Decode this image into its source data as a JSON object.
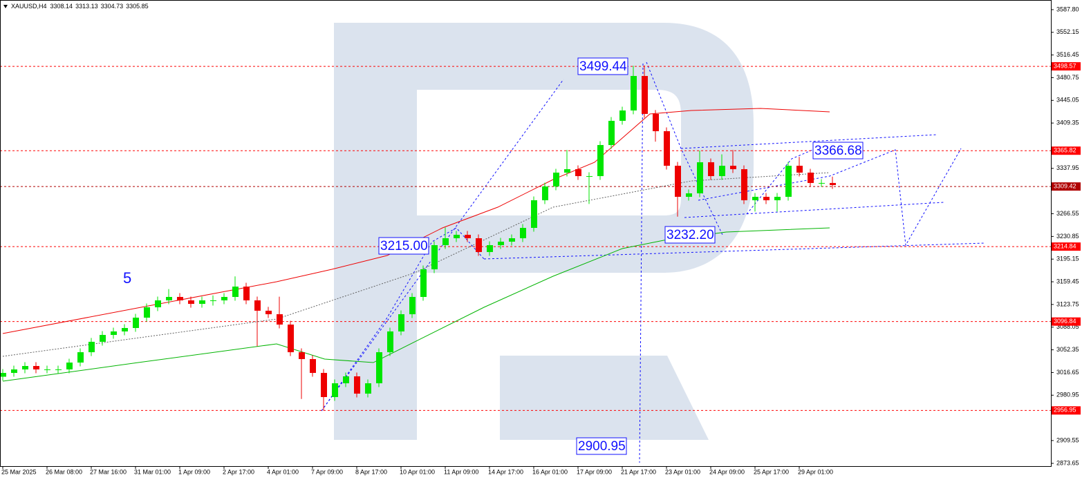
{
  "chart_data": {
    "type": "candlestick",
    "header": {
      "symbol": "XAUUSD,H4",
      "ohlc": [
        3308.14,
        3313.13,
        3304.73,
        3305.85
      ]
    },
    "up_color": "#00e600",
    "down_color": "#ee0000",
    "ylim": [
      2869.3,
      3603.0
    ],
    "yticks": [
      {
        "value": 3587.8,
        "label": "3587.80"
      },
      3552.15,
      3516.45,
      3480.75,
      3445.05,
      3409.35,
      3337.95,
      3266.55,
      3230.85,
      3195.15,
      3159.45,
      3123.75,
      3088.05,
      3052.35,
      3016.65,
      2980.95,
      2909.55,
      2873.65
    ],
    "xlim": [
      -0.25,
      94.75
    ],
    "xticks": [
      {
        "value": 0,
        "label": "25 Mar 2025"
      },
      {
        "value": 4,
        "label": "26 Mar 08:00"
      },
      {
        "value": 8,
        "label": "27 Mar 16:00"
      },
      {
        "value": 12,
        "label": "31 Mar 01:00"
      },
      {
        "value": 16,
        "label": "1 Apr 09:00"
      },
      {
        "value": 20,
        "label": "2 Apr 17:00"
      },
      {
        "value": 24,
        "label": "4 Apr 01:00"
      },
      {
        "value": 28,
        "label": "7 Apr 09:00"
      },
      {
        "value": 32,
        "label": "8 Apr 17:00"
      },
      {
        "value": 36,
        "label": "10 Apr 01:00"
      },
      {
        "value": 40,
        "label": "11 Apr 09:00"
      },
      {
        "value": 44,
        "label": "14 Apr 17:00"
      },
      {
        "value": 48,
        "label": "16 Apr 01:00"
      },
      {
        "value": 52,
        "label": "17 Apr 09:00"
      },
      {
        "value": 56,
        "label": "21 Apr 17:00"
      },
      {
        "value": 60,
        "label": "23 Apr 01:00"
      },
      {
        "value": 64,
        "label": "24 Apr 09:00"
      },
      {
        "value": 68,
        "label": "25 Apr 17:00"
      },
      {
        "value": 72,
        "label": "29 Apr 01:00"
      }
    ],
    "levels": [
      {
        "value": 3498.57,
        "color": "#ff0000"
      },
      {
        "value": 3365.82,
        "color": "#ff0000"
      },
      {
        "value": 3309.42,
        "color": "#b00000"
      },
      {
        "value": 3214.84,
        "color": "#ff0000"
      },
      {
        "value": 3096.84,
        "color": "#ff0000"
      },
      {
        "value": 2956.95,
        "color": "#ff0000"
      }
    ],
    "series": [
      {
        "ohlc": [
          [
            3010.0,
            3022.0,
            3004.0,
            3016.0
          ],
          [
            3016.0,
            3027.5,
            3010.0,
            3021.5
          ],
          [
            3021.5,
            3032.9,
            3015.5,
            3026.9
          ],
          [
            3026.9,
            3032.9,
            3015.5,
            3021.5
          ],
          [
            3021.5,
            3027.5,
            3015.5,
            3021.5
          ],
          [
            3021.5,
            3027.5,
            3015.5,
            3021.5
          ],
          [
            3021.5,
            3038.3,
            3015.5,
            3032.3
          ],
          [
            3032.3,
            3054.6,
            3026.3,
            3048.6
          ],
          [
            3048.6,
            3071.0,
            3042.6,
            3065.0
          ],
          [
            3065.0,
            3081.8,
            3059.0,
            3075.8
          ],
          [
            3075.8,
            3087.3,
            3069.8,
            3081.3
          ],
          [
            3081.3,
            3092.7,
            3075.3,
            3086.7
          ],
          [
            3086.7,
            3109.0,
            3080.7,
            3103.0
          ],
          [
            3103.0,
            3125.3,
            3097.0,
            3119.3
          ],
          [
            3119.3,
            3136.2,
            3113.3,
            3130.2
          ],
          [
            3130.2,
            3148.0,
            3124.2,
            3135.6
          ],
          [
            3135.6,
            3141.6,
            3124.2,
            3130.2
          ],
          [
            3130.2,
            3136.2,
            3118.7,
            3124.7
          ],
          [
            3124.7,
            3136.2,
            3118.7,
            3130.2
          ],
          [
            3130.2,
            3138.0,
            3122.0,
            3130.2
          ],
          [
            3130.2,
            3141.6,
            3124.2,
            3135.6
          ],
          [
            3135.6,
            3168.0,
            3129.6,
            3151.9
          ],
          [
            3151.9,
            3157.9,
            3124.2,
            3130.2
          ],
          [
            3130.2,
            3136.2,
            3058.0,
            3113.9
          ],
          [
            3113.9,
            3120.0,
            3102.4,
            3108.4
          ],
          [
            3108.4,
            3136.0,
            3086.1,
            3092.1
          ],
          [
            3092.1,
            3098.1,
            3042.6,
            3048.6
          ],
          [
            3048.6,
            3054.6,
            2975.0,
            3037.8
          ],
          [
            3037.8,
            3043.8,
            3010.0,
            3016.0
          ],
          [
            3016.0,
            3022.0,
            2957.0,
            2978.0
          ],
          [
            2978.0,
            3005.7,
            2972.0,
            2999.7
          ],
          [
            2999.7,
            3016.6,
            2993.7,
            3010.6
          ],
          [
            3010.6,
            3016.6,
            2977.4,
            2983.4
          ],
          [
            2983.4,
            3005.7,
            2977.4,
            2999.7
          ],
          [
            2999.7,
            3054.6,
            2993.7,
            3048.6
          ],
          [
            3048.6,
            3087.3,
            3042.6,
            3081.3
          ],
          [
            3081.3,
            3114.4,
            3075.3,
            3108.4
          ],
          [
            3108.4,
            3141.6,
            3102.4,
            3135.6
          ],
          [
            3135.6,
            3185.1,
            3129.6,
            3179.1
          ],
          [
            3179.1,
            3223.1,
            3173.1,
            3217.1
          ],
          [
            3217.1,
            3245.0,
            3211.1,
            3228.0
          ],
          [
            3228.0,
            3239.4,
            3222.0,
            3233.4
          ],
          [
            3233.4,
            3239.4,
            3222.0,
            3228.0
          ],
          [
            3228.0,
            3234.0,
            3200.3,
            3206.3
          ],
          [
            3206.3,
            3223.1,
            3200.3,
            3217.1
          ],
          [
            3217.1,
            3228.6,
            3211.1,
            3222.6
          ],
          [
            3222.6,
            3234.0,
            3216.6,
            3228.0
          ],
          [
            3228.0,
            3250.3,
            3222.0,
            3244.3
          ],
          [
            3244.3,
            3293.8,
            3238.3,
            3287.8
          ],
          [
            3287.8,
            3315.5,
            3281.8,
            3309.5
          ],
          [
            3309.5,
            3337.3,
            3303.5,
            3331.3
          ],
          [
            3331.3,
            3367.0,
            3325.3,
            3336.7
          ],
          [
            3336.7,
            3342.7,
            3319.8,
            3325.8
          ],
          [
            3325.8,
            3331.8,
            3282.0,
            3325.8
          ],
          [
            3325.8,
            3380.7,
            3319.8,
            3374.7
          ],
          [
            3374.7,
            3418.8,
            3368.7,
            3412.8
          ],
          [
            3412.8,
            3435.1,
            3406.8,
            3429.1
          ],
          [
            3429.1,
            3499.4,
            3423.1,
            3483.4
          ],
          [
            3483.4,
            3500.0,
            3417.7,
            3423.7
          ],
          [
            3423.7,
            3429.7,
            3380.0,
            3396.5
          ],
          [
            3396.5,
            3402.5,
            3336.1,
            3342.1
          ],
          [
            3342.1,
            3348.1,
            3262.0,
            3293.2
          ],
          [
            3293.2,
            3304.7,
            3287.2,
            3298.7
          ],
          [
            3298.7,
            3366.0,
            3292.7,
            3347.6
          ],
          [
            3347.6,
            3353.6,
            3319.8,
            3325.8
          ],
          [
            3325.8,
            3360.0,
            3319.8,
            3342.1
          ],
          [
            3342.1,
            3367.0,
            3330.7,
            3336.7
          ],
          [
            3336.7,
            3342.7,
            3281.8,
            3287.8
          ],
          [
            3287.8,
            3299.2,
            3270.0,
            3293.2
          ],
          [
            3293.2,
            3299.2,
            3281.8,
            3287.8
          ],
          [
            3287.8,
            3299.2,
            3270.0,
            3293.2
          ],
          [
            3293.2,
            3348.1,
            3287.2,
            3342.1
          ],
          [
            3342.1,
            3356.0,
            3325.3,
            3331.3
          ],
          [
            3331.3,
            3337.3,
            3309.0,
            3315.0
          ],
          [
            3315.0,
            3321.0,
            3309.0,
            3315.0
          ],
          [
            3315.0,
            3325.0,
            3305.7,
            3311.7
          ]
        ]
      }
    ],
    "lines": [
      {
        "color": "#ee0000",
        "x": [
          0,
          12.5,
          24.75,
          29.75,
          34.75,
          39.75,
          44.75,
          49.75,
          53.5,
          56,
          58.5,
          62.25,
          68.5,
          74.75
        ],
        "values": [
          3078.0,
          3119.3,
          3159.5,
          3179.1,
          3200.8,
          3244.3,
          3276.9,
          3320.4,
          3347.6,
          3385.6,
          3423.7,
          3429.1,
          3432.4,
          3426.9
        ]
      },
      {
        "color": "#00b400",
        "x": [
          0,
          12.25,
          24.75,
          29.1,
          33.5,
          37.25,
          43.5,
          49.75,
          56,
          59.75,
          65.4,
          74.75
        ],
        "values": [
          3003.0,
          3032.3,
          3061.7,
          3037.8,
          3032.3,
          3065.0,
          3119.3,
          3168.2,
          3211.7,
          3224.7,
          3237.8,
          3244.3
        ]
      },
      {
        "color": "#606060",
        "dash": true,
        "x": [
          0,
          24.75,
          37.25,
          49.75,
          62.25,
          74.75
        ],
        "values": [
          3042.1,
          3100.8,
          3173.7,
          3276.9,
          3318.2,
          3331.3
        ]
      }
    ],
    "annotations": [
      "3499.44",
      "3215.00",
      "3232.20",
      "3366.68",
      "2900.95",
      "5"
    ]
  }
}
